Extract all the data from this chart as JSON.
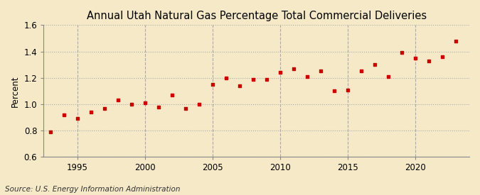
{
  "title": "Annual Utah Natural Gas Percentage Total Commercial Deliveries",
  "ylabel": "Percent",
  "source": "Source: U.S. Energy Information Administration",
  "xlim": [
    1992.5,
    2024
  ],
  "ylim": [
    0.6,
    1.6
  ],
  "yticks": [
    0.6,
    0.8,
    1.0,
    1.2,
    1.4,
    1.6
  ],
  "xticks": [
    1995,
    2000,
    2005,
    2010,
    2015,
    2020
  ],
  "background_color": "#f5e9c8",
  "marker_color": "#cc0000",
  "years": [
    1993,
    1994,
    1995,
    1996,
    1997,
    1998,
    1999,
    2000,
    2001,
    2002,
    2003,
    2004,
    2005,
    2006,
    2007,
    2008,
    2009,
    2010,
    2011,
    2012,
    2013,
    2014,
    2015,
    2016,
    2017,
    2018,
    2019,
    2020,
    2021,
    2022,
    2023
  ],
  "values": [
    0.79,
    0.92,
    0.89,
    0.94,
    0.97,
    1.03,
    1.0,
    1.01,
    0.98,
    1.07,
    0.97,
    1.0,
    1.15,
    1.2,
    1.14,
    1.19,
    1.19,
    1.24,
    1.27,
    1.21,
    1.25,
    1.1,
    1.11,
    1.25,
    1.3,
    1.21,
    1.39,
    1.35,
    1.33,
    1.36,
    1.48
  ],
  "title_fontsize": 10.5,
  "label_fontsize": 8.5,
  "tick_fontsize": 8.5,
  "source_fontsize": 7.5
}
